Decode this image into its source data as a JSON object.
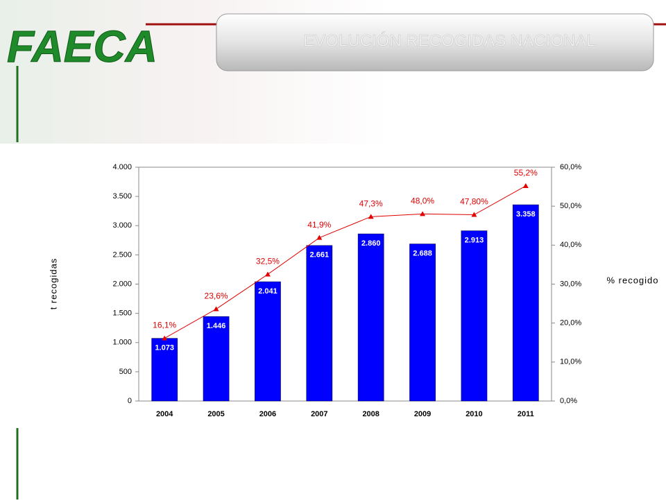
{
  "logo": "FAECA",
  "chart_data": {
    "type": "combo",
    "title": "EVOLUCIÓN RECOGIDAS NACIONAL",
    "y_label": "t recogidas",
    "y2_label": "% recogido",
    "categories": [
      "2004",
      "2005",
      "2006",
      "2007",
      "2008",
      "2009",
      "2010",
      "2011"
    ],
    "series": [
      {
        "type": "bar",
        "color": "#0000ff",
        "axis": "y",
        "values": [
          1073,
          1446,
          2041,
          2661,
          2860,
          2688,
          2913,
          3358
        ],
        "value_labels": [
          "1.073",
          "1.446",
          "2.041",
          "2.661",
          "2.860",
          "2.688",
          "2.913",
          "3.358"
        ]
      },
      {
        "type": "line",
        "color": "#e00000",
        "axis": "y2",
        "values": [
          16.1,
          23.6,
          32.5,
          41.9,
          47.3,
          48.0,
          47.8,
          55.2
        ],
        "value_labels": [
          "16,1%",
          "23,6%",
          "32,5%",
          "41,9%",
          "47,3%",
          "48,0%",
          "47,80%",
          "55,2%"
        ]
      }
    ],
    "ylim": [
      0,
      4000
    ],
    "yticks": [
      0,
      500,
      {
        "value": 1000,
        "label": "1.000"
      },
      {
        "value": 1500,
        "label": "1.500"
      },
      {
        "value": 2000,
        "label": "2.000"
      },
      {
        "value": 2500,
        "label": "2.500"
      },
      {
        "value": 3000,
        "label": "3.000"
      },
      {
        "value": 3500,
        "label": "3.500"
      },
      {
        "value": 4000,
        "label": "4.000"
      }
    ],
    "y2lim": [
      0,
      60
    ],
    "y2ticks": [
      {
        "value": 0,
        "label": "0,0%"
      },
      {
        "value": 10,
        "label": "10,0%"
      },
      {
        "value": 20,
        "label": "20,0%"
      },
      {
        "value": 30,
        "label": "30,0%"
      },
      {
        "value": 40,
        "label": "40,0%"
      },
      {
        "value": 50,
        "label": "50,0%"
      },
      {
        "value": 60,
        "label": "60,0%"
      }
    ]
  }
}
